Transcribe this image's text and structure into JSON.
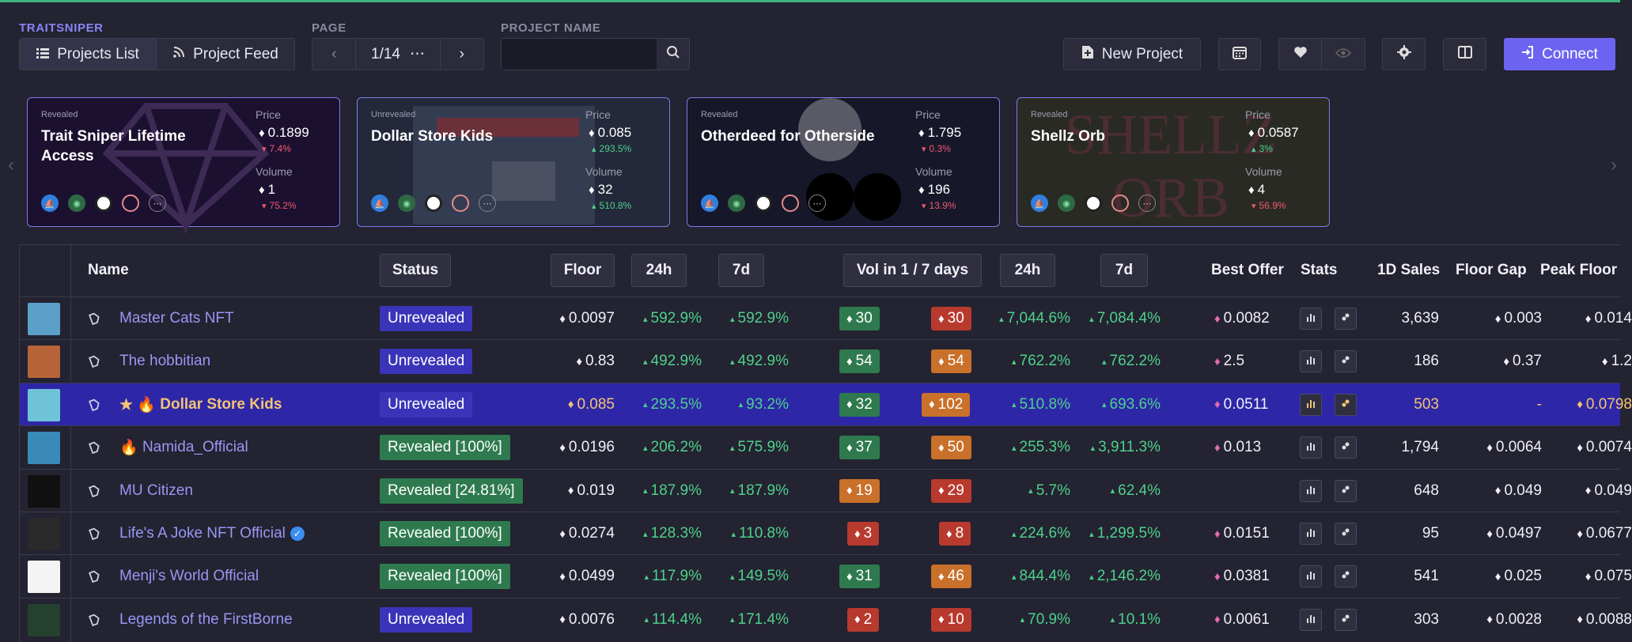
{
  "header": {
    "brand": "TRAITSNIPER",
    "page_label": "PAGE",
    "project_name_label": "PROJECT NAME",
    "projects_list": "Projects List",
    "project_feed": "Project Feed",
    "page_value": "1/14",
    "page_more": "⋯",
    "search_placeholder": "",
    "new_project": "New Project",
    "connect": "Connect"
  },
  "cards": [
    {
      "state": "Revealed",
      "title": "Trait Sniper Lifetime Access",
      "price_label": "Price",
      "price": "0.1899",
      "price_change": "7.4%",
      "price_dir": "down",
      "volume_label": "Volume",
      "volume": "1",
      "volume_change": "75.2%",
      "volume_dir": "down",
      "bg": "#1c1030"
    },
    {
      "state": "Unrevealed",
      "title": "Dollar Store Kids",
      "price_label": "Price",
      "price": "0.085",
      "price_change": "293.5%",
      "price_dir": "up",
      "volume_label": "Volume",
      "volume": "32",
      "volume_change": "510.8%",
      "volume_dir": "up",
      "bg": "#23283a"
    },
    {
      "state": "Revealed",
      "title": "Otherdeed for Otherside",
      "price_label": "Price",
      "price": "1.795",
      "price_change": "0.3%",
      "price_dir": "down",
      "volume_label": "Volume",
      "volume": "196",
      "volume_change": "13.9%",
      "volume_dir": "down",
      "bg": "#17172a"
    },
    {
      "state": "Revealed",
      "title": "Shellz Orb",
      "price_label": "Price",
      "price": "0.0587",
      "price_change": "3%",
      "price_dir": "up",
      "volume_label": "Volume",
      "volume": "4",
      "volume_change": "56.9%",
      "volume_dir": "down",
      "bg": "#2a2a24"
    }
  ],
  "table": {
    "columns": {
      "name": "Name",
      "status": "Status",
      "floor": "Floor",
      "h24": "24h",
      "d7": "7d",
      "vol": "Vol in 1 / 7 days",
      "vh24": "24h",
      "vd7": "7d",
      "best_offer": "Best Offer",
      "stats": "Stats",
      "sales": "1D Sales",
      "floor_gap": "Floor Gap",
      "peak_floor": "Peak Floor"
    },
    "rows": [
      {
        "prefix": "",
        "name": "Master Cats NFT",
        "verified": false,
        "status": "Unrevealed",
        "status_type": "unrev",
        "floor": "0.0097",
        "f24": "592.9%",
        "f7": "592.9%",
        "v1": "30",
        "v1c": "#2e7a4e",
        "v7": "30",
        "v7c": "#b83a2e",
        "vc24": "7,044.6%",
        "vc7": "7,084.4%",
        "offer": "0.0082",
        "sales": "3,639",
        "gap": "0.003",
        "peak": "0.014",
        "thumb": "#5aa0c8"
      },
      {
        "prefix": "",
        "name": "The hobbitian",
        "verified": false,
        "status": "Unrevealed",
        "status_type": "unrev",
        "floor": "0.83",
        "f24": "492.9%",
        "f7": "492.9%",
        "v1": "54",
        "v1c": "#2e7a4e",
        "v7": "54",
        "v7c": "#c9702a",
        "vc24": "762.2%",
        "vc7": "762.2%",
        "offer": "2.5",
        "sales": "186",
        "gap": "0.37",
        "peak": "1.2",
        "thumb": "#b8643a"
      },
      {
        "prefix": "★ 🔥 ",
        "name": "Dollar Store Kids",
        "verified": false,
        "status": "Unrevealed",
        "status_type": "unrev",
        "floor": "0.085",
        "f24": "293.5%",
        "f7": "93.2%",
        "v1": "32",
        "v1c": "#2e7a4e",
        "v7": "102",
        "v7c": "#c9702a",
        "vc24": "510.8%",
        "vc7": "693.6%",
        "offer": "0.0511",
        "sales": "503",
        "gap": "-",
        "peak": "0.0798",
        "thumb": "#6fc3d8"
      },
      {
        "prefix": "🔥 ",
        "name": "Namida_Official",
        "verified": false,
        "status": "Revealed [100%]",
        "status_type": "rev",
        "floor": "0.0196",
        "f24": "206.2%",
        "f7": "575.9%",
        "v1": "37",
        "v1c": "#2e7a4e",
        "v7": "50",
        "v7c": "#c9702a",
        "vc24": "255.3%",
        "vc7": "3,911.3%",
        "offer": "0.013",
        "sales": "1,794",
        "gap": "0.0064",
        "peak": "0.0074",
        "thumb": "#3a8ab8"
      },
      {
        "prefix": "",
        "name": "MU Citizen",
        "verified": false,
        "status": "Revealed [24.81%]",
        "status_type": "rev",
        "floor": "0.019",
        "f24": "187.9%",
        "f7": "187.9%",
        "v1": "19",
        "v1c": "#c9702a",
        "v7": "29",
        "v7c": "#b83a2e",
        "vc24": "5.7%",
        "vc7": "62.4%",
        "offer": "",
        "sales": "648",
        "gap": "0.049",
        "peak": "0.049",
        "thumb": "#111111"
      },
      {
        "prefix": "",
        "name": "Life's A Joke NFT Official",
        "verified": true,
        "status": "Revealed [100%]",
        "status_type": "rev",
        "floor": "0.0274",
        "f24": "128.3%",
        "f7": "110.8%",
        "v1": "3",
        "v1c": "#b83a2e",
        "v7": "8",
        "v7c": "#b83a2e",
        "vc24": "224.6%",
        "vc7": "1,299.5%",
        "offer": "0.0151",
        "sales": "95",
        "gap": "0.0497",
        "peak": "0.0677",
        "thumb": "#2a2a2a"
      },
      {
        "prefix": "",
        "name": "Menji's World Official",
        "verified": false,
        "status": "Revealed [100%]",
        "status_type": "rev",
        "floor": "0.0499",
        "f24": "117.9%",
        "f7": "149.5%",
        "v1": "31",
        "v1c": "#2e7a4e",
        "v7": "46",
        "v7c": "#c9702a",
        "vc24": "844.4%",
        "vc7": "2,146.2%",
        "offer": "0.0381",
        "sales": "541",
        "gap": "0.025",
        "peak": "0.075",
        "thumb": "#f4f4f4"
      },
      {
        "prefix": "",
        "name": "Legends of the FirstBorne",
        "verified": false,
        "status": "Unrevealed",
        "status_type": "unrev",
        "floor": "0.0076",
        "f24": "114.4%",
        "f7": "171.4%",
        "v1": "2",
        "v1c": "#b83a2e",
        "v7": "10",
        "v7c": "#b83a2e",
        "vc24": "70.9%",
        "vc7": "10.1%",
        "offer": "0.0061",
        "sales": "303",
        "gap": "0.0028",
        "peak": "0.0088",
        "thumb": "#24402e"
      }
    ]
  }
}
